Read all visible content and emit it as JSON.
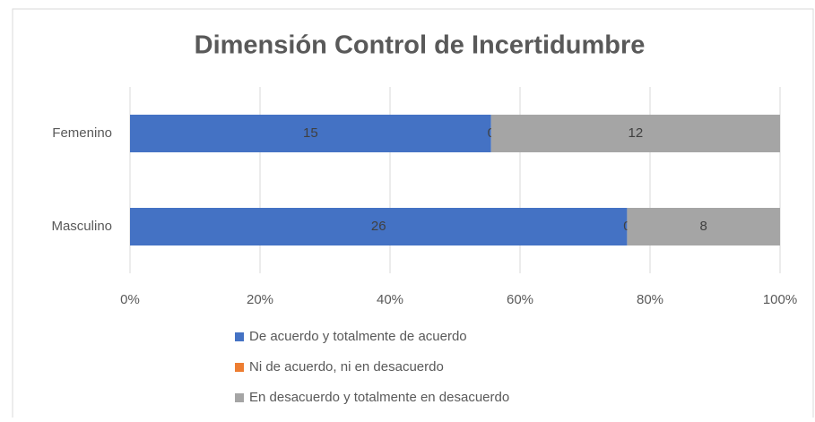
{
  "chart_data": {
    "type": "bar",
    "orientation": "horizontal",
    "stacking": "percent",
    "title": "Dimensión Control de Incertidumbre",
    "categories": [
      "Femenino",
      "Masculino"
    ],
    "series": [
      {
        "name": "De acuerdo y totalmente de acuerdo",
        "color": "#4472c4",
        "values": [
          15,
          26
        ]
      },
      {
        "name": "Ni de acuerdo, ni en desacuerdo",
        "color": "#ed7d31",
        "values": [
          0,
          0
        ]
      },
      {
        "name": "En desacuerdo y totalmente en desacuerdo",
        "color": "#a5a5a5",
        "values": [
          12,
          8
        ]
      }
    ],
    "xlim": [
      0,
      100
    ],
    "xticks": [
      {
        "value": 0,
        "label": "0%"
      },
      {
        "value": 20,
        "label": "20%"
      },
      {
        "value": 40,
        "label": "40%"
      },
      {
        "value": 60,
        "label": "60%"
      },
      {
        "value": 80,
        "label": "80%"
      },
      {
        "value": 100,
        "label": "100%"
      }
    ],
    "grid": true,
    "legend": "bottom"
  }
}
